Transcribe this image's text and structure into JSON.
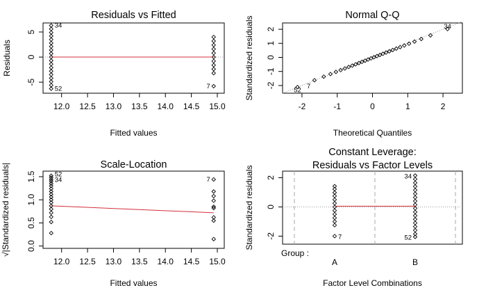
{
  "chart_data": [
    {
      "type": "scatter",
      "title": "Residuals vs Fitted",
      "xlabel": "Fitted values",
      "ylabel": "Residuals",
      "xlim": [
        11.75,
        15.0
      ],
      "ylim": [
        -7.2,
        6.8
      ],
      "xticks": [
        "12.0",
        "12.5",
        "13.0",
        "13.5",
        "14.0",
        "14.5",
        "15.0"
      ],
      "yticks": [
        "-5",
        "0",
        "5"
      ],
      "groups": [
        {
          "x": 11.8,
          "values": [
            6.3,
            5.6,
            4.9,
            4.2,
            3.5,
            2.8,
            2.1,
            1.4,
            0.7,
            0.0,
            -0.7,
            -1.4,
            -2.1,
            -2.8,
            -3.5,
            -4.2,
            -4.9,
            -5.6,
            -6.3
          ]
        },
        {
          "x": 14.93,
          "values": [
            4.0,
            3.2,
            2.4,
            1.6,
            0.8,
            0.0,
            -0.8,
            -1.6,
            -2.4,
            -3.2,
            -5.8
          ]
        }
      ],
      "smoother": [
        {
          "x": 11.8,
          "y": 0.0
        },
        {
          "x": 14.93,
          "y": 0.0
        }
      ],
      "point_labels": [
        {
          "text": "34",
          "x": 11.8,
          "y": 6.3
        },
        {
          "text": "52",
          "x": 11.8,
          "y": -6.3
        },
        {
          "text": "7",
          "x": 14.93,
          "y": -5.8
        }
      ]
    },
    {
      "type": "scatter",
      "title": "Normal Q-Q",
      "xlabel": "Theoretical Quantiles",
      "ylabel": "Standardized residuals",
      "xlim": [
        -2.55,
        2.55
      ],
      "ylim": [
        -2.55,
        2.45
      ],
      "xticks": [
        "-2",
        "-1",
        "0",
        "1",
        "2"
      ],
      "yticks": [
        "-2",
        "-1",
        "0",
        "1",
        "2"
      ],
      "reference_line": {
        "slope": 1.0,
        "intercept": 0.0
      },
      "n_points": 30,
      "point_labels": [
        {
          "text": "34",
          "x": 2.33,
          "y": 2.2
        },
        {
          "text": "52",
          "x": -2.33,
          "y": -2.33
        },
        {
          "text": "7",
          "x": -1.96,
          "y": -2.05
        }
      ]
    },
    {
      "type": "scatter",
      "title": "Scale-Location",
      "xlabel": "Fitted values",
      "ylabel": "√|Standardized residuals|",
      "xlim": [
        11.75,
        15.0
      ],
      "ylim": [
        -0.05,
        1.62
      ],
      "xticks": [
        "12.0",
        "12.5",
        "13.0",
        "13.5",
        "14.0",
        "14.5",
        "15.0"
      ],
      "yticks": [
        "0.0",
        "0.5",
        "1.0",
        "1.5"
      ],
      "groups": [
        {
          "x": 11.8,
          "values": [
            1.52,
            1.48,
            1.44,
            1.4,
            1.35,
            1.3,
            1.24,
            1.18,
            1.12,
            1.06,
            1.0,
            0.94,
            0.87,
            0.8,
            0.72,
            0.63,
            0.52,
            0.28
          ]
        },
        {
          "x": 14.93,
          "values": [
            1.44,
            1.18,
            1.08,
            0.98,
            0.85,
            0.82,
            0.62,
            0.55,
            0.15
          ]
        }
      ],
      "smoother": [
        {
          "x": 11.8,
          "y": 0.87
        },
        {
          "x": 14.93,
          "y": 0.72
        }
      ],
      "point_labels": [
        {
          "text": "52",
          "x": 11.8,
          "y": 1.52
        },
        {
          "text": "34",
          "x": 11.8,
          "y": 1.48
        },
        {
          "text": "7",
          "x": 14.93,
          "y": 1.44
        }
      ]
    },
    {
      "type": "scatter",
      "title": "Constant Leverage:",
      "subtitle": "Residuals vs Factor Levels",
      "xlabel": "Factor Level Combinations",
      "ylabel": "Standardized residuals",
      "group_label": "Group :",
      "categories": [
        "A",
        "B"
      ],
      "ylim": [
        -2.55,
        2.45
      ],
      "yticks": [
        "-2",
        "0",
        "2"
      ],
      "groups": [
        {
          "category": "A",
          "values": [
            1.42,
            1.22,
            0.98,
            0.75,
            0.5,
            0.25,
            0.0,
            -0.25,
            -0.5,
            -0.75,
            -1.0,
            -1.25,
            -2.0
          ]
        },
        {
          "category": "B",
          "values": [
            2.15,
            1.9,
            1.65,
            1.4,
            1.15,
            0.9,
            0.65,
            0.4,
            0.15,
            -0.1,
            -0.35,
            -0.6,
            -0.85,
            -1.1,
            -1.35,
            -1.6,
            -1.85,
            -2.05
          ]
        }
      ],
      "smoother": [
        {
          "category": "A",
          "y": 0.05
        },
        {
          "category": "B",
          "y": 0.05
        }
      ],
      "point_labels": [
        {
          "text": "7",
          "category": "A",
          "y": -2.0
        },
        {
          "text": "34",
          "category": "B",
          "y": 2.15
        },
        {
          "text": "52",
          "category": "B",
          "y": -2.05
        }
      ]
    }
  ]
}
